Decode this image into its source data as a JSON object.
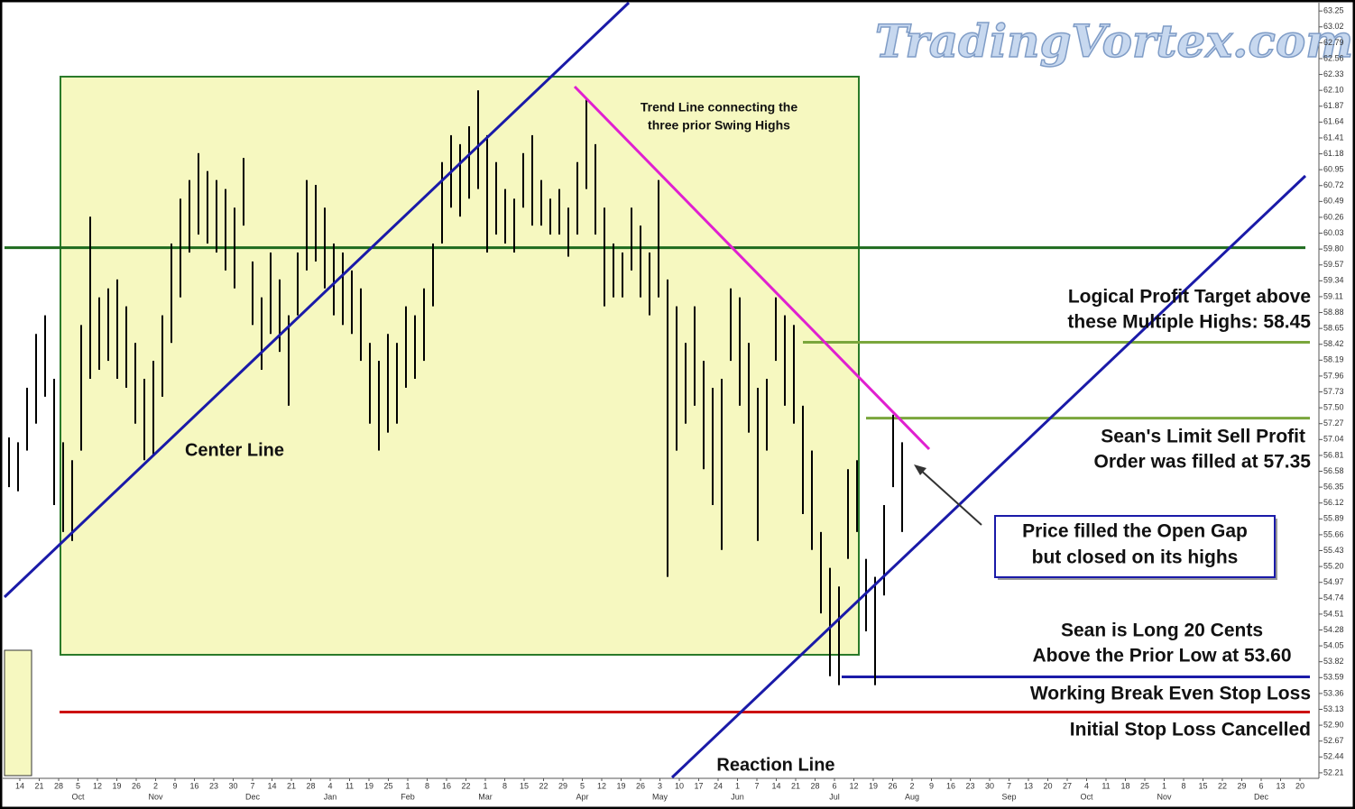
{
  "chart_data": {
    "type": "ohlc",
    "watermark": "TradingVortex.com",
    "bars": {
      "color": "#000000",
      "high": [
        57.07,
        57.0,
        57.79,
        58.57,
        58.84,
        57.92,
        57.0,
        56.74,
        58.7,
        60.27,
        59.1,
        59.23,
        59.36,
        58.97,
        58.44,
        57.92,
        58.18,
        58.84,
        59.88,
        60.53,
        60.8,
        61.19,
        60.93,
        60.8,
        60.67,
        60.4,
        61.12,
        59.62,
        59.1,
        59.75,
        59.36,
        58.84,
        59.75,
        60.8,
        60.73,
        60.4,
        59.88,
        59.75,
        59.49,
        59.23,
        58.44,
        58.18,
        58.57,
        58.44,
        58.97,
        58.84,
        59.23,
        59.88,
        61.06,
        61.45,
        61.32,
        61.58,
        62.1,
        61.45,
        61.06,
        60.67,
        60.53,
        61.19,
        61.45,
        60.8,
        60.53,
        60.67,
        60.4,
        61.06,
        61.97,
        61.32,
        60.4,
        59.88,
        59.75,
        60.4,
        60.14,
        59.75,
        60.8,
        59.36,
        58.97,
        58.44,
        58.97,
        58.18,
        57.79,
        57.92,
        59.23,
        59.1,
        58.44,
        57.79,
        57.92,
        59.1,
        58.84,
        58.7,
        57.53,
        56.88,
        55.7,
        55.18,
        54.91,
        56.61,
        56.74,
        55.31,
        55.05,
        56.09,
        57.4,
        57.0
      ],
      "low": [
        56.35,
        56.29,
        56.88,
        57.27,
        57.66,
        56.09,
        55.7,
        55.57,
        56.88,
        57.92,
        58.05,
        58.18,
        57.92,
        57.79,
        57.27,
        56.74,
        56.81,
        57.66,
        58.44,
        59.1,
        59.75,
        60.01,
        59.88,
        59.75,
        59.49,
        59.23,
        60.14,
        58.7,
        58.05,
        58.57,
        58.31,
        57.53,
        58.84,
        59.49,
        59.62,
        59.23,
        58.84,
        58.7,
        58.57,
        58.18,
        57.27,
        56.88,
        57.14,
        57.27,
        57.79,
        57.92,
        58.18,
        58.97,
        59.88,
        60.4,
        60.27,
        60.53,
        60.67,
        59.75,
        60.01,
        59.88,
        59.75,
        60.4,
        60.14,
        60.14,
        60.01,
        60.01,
        59.69,
        60.01,
        60.67,
        60.01,
        58.97,
        59.1,
        59.1,
        59.49,
        59.1,
        58.84,
        59.1,
        55.05,
        56.88,
        57.27,
        57.53,
        56.61,
        56.09,
        55.44,
        58.18,
        57.53,
        57.14,
        55.57,
        56.88,
        58.18,
        57.53,
        57.27,
        55.96,
        55.44,
        54.52,
        53.61,
        53.48,
        55.31,
        55.7,
        54.26,
        53.48,
        54.78,
        56.35,
        55.7
      ]
    },
    "ylim": [
      52.13,
      63.37
    ],
    "yticks": [
      63.25,
      63.02,
      62.79,
      62.56,
      62.33,
      {
        "value": 62.1,
        "label": "62.10"
      },
      61.87,
      61.64,
      61.41,
      61.18,
      60.95,
      60.72,
      60.49,
      60.26,
      60.03,
      {
        "value": 59.8,
        "label": "59.80"
      },
      59.57,
      59.34,
      59.11,
      58.88,
      58.65,
      58.42,
      58.19,
      57.96,
      57.73,
      {
        "value": 57.5,
        "label": "57.50"
      },
      57.27,
      57.04,
      56.81,
      56.58,
      56.35,
      56.12,
      55.89,
      55.66,
      55.43,
      {
        "value": 55.2,
        "label": "55.20"
      },
      54.97,
      54.74,
      54.51,
      54.28,
      54.05,
      53.82,
      53.59,
      53.36,
      53.13,
      {
        "value": 52.9,
        "label": "52.90"
      },
      52.67,
      52.44,
      52.21
    ],
    "day_labels": [
      "14",
      "21",
      "28",
      "5",
      "12",
      "19",
      "26",
      "2",
      "9",
      "16",
      "23",
      "30",
      "7",
      "14",
      "21",
      "28",
      "4",
      "11",
      "19",
      "25",
      "1",
      "8",
      "16",
      "22",
      "1",
      "8",
      "15",
      "22",
      "29",
      "5",
      "12",
      "19",
      "26",
      "3",
      "10",
      "17",
      "24",
      "1",
      "7",
      "14",
      "21",
      "28",
      "6",
      "12",
      "19",
      "26",
      "2",
      "9",
      "16",
      "23",
      "30",
      "7",
      "13",
      "20",
      "27",
      "4",
      "11",
      "18",
      "25",
      "1",
      "8",
      "15",
      "22",
      "29",
      "6",
      "13",
      "20"
    ],
    "month_labels": [
      null,
      null,
      null,
      "Oct",
      null,
      null,
      null,
      "Nov",
      null,
      null,
      null,
      null,
      "Dec",
      null,
      null,
      null,
      "Jan",
      null,
      null,
      null,
      "Feb",
      null,
      null,
      null,
      "Mar",
      null,
      null,
      null,
      null,
      "Apr",
      null,
      null,
      null,
      "May",
      null,
      null,
      null,
      "Jun",
      null,
      null,
      null,
      null,
      "Jul",
      null,
      null,
      null,
      "Aug",
      null,
      null,
      null,
      null,
      "Sep",
      null,
      null,
      null,
      "Oct",
      null,
      null,
      null,
      "Nov",
      null,
      null,
      null,
      null,
      "Dec",
      null,
      null
    ],
    "levels": [
      {
        "value": 59.82,
        "color": "#1e6b1e"
      },
      {
        "value": 58.45,
        "color": "#7aa63c"
      },
      {
        "value": 57.35,
        "color": "#7aa63c"
      },
      {
        "value": 53.6,
        "color": "#1a1aa8"
      },
      {
        "value": 53.09,
        "color": "#cc1111"
      }
    ],
    "annotations": [
      {
        "lines": [
          "Trend Line connecting the",
          "three prior Swing Highs"
        ]
      },
      {
        "lines": [
          "Center Line"
        ]
      },
      {
        "lines": [
          "Reaction Line"
        ]
      },
      {
        "lines": [
          "Logical Profit Target above",
          "these Multiple Highs: 58.45"
        ]
      },
      {
        "lines": [
          "Sean's Limit Sell Profit",
          "Order was filled at 57.35"
        ]
      },
      {
        "lines": [
          "Price filled the Open Gap",
          "but closed on its highs"
        ]
      },
      {
        "lines": [
          "Sean is Long 20 Cents",
          "Above the Prior Low at 53.60"
        ]
      },
      {
        "lines": [
          "Working Break Even Stop Loss"
        ]
      },
      {
        "lines": [
          "Initial Stop Loss Cancelled"
        ]
      }
    ]
  }
}
